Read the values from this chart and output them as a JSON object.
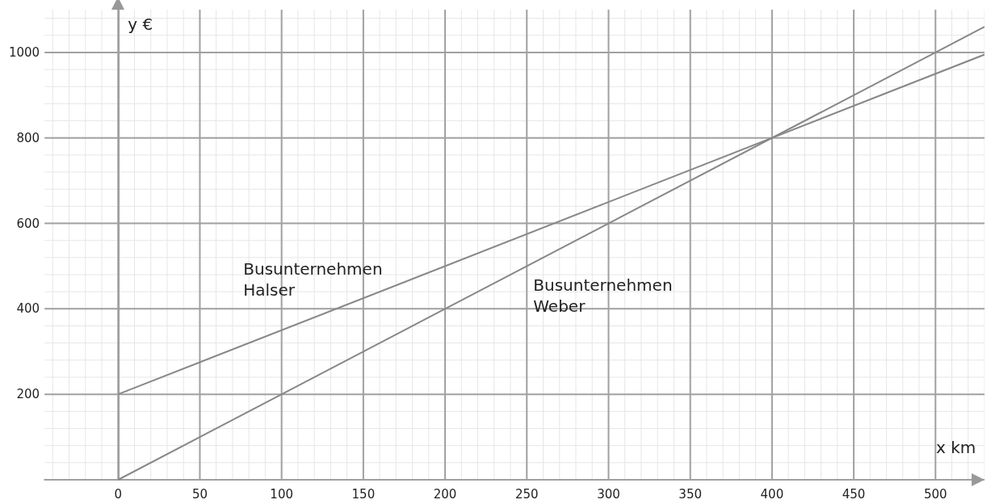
{
  "chart_data": {
    "type": "line",
    "xlabel": "x km",
    "ylabel": "y €",
    "xlim": [
      -45,
      530
    ],
    "ylim": [
      0,
      1100
    ],
    "xticks": [
      0,
      50,
      100,
      150,
      200,
      250,
      300,
      350,
      400,
      450,
      500
    ],
    "yticks": [
      200,
      400,
      600,
      800,
      1000
    ],
    "grid": true,
    "x": [
      0,
      530
    ],
    "marker": "none",
    "line_style": "solid",
    "series": [
      {
        "name": "Busunternehmen Halser",
        "color": "#888888",
        "values": [
          200,
          995
        ]
      },
      {
        "name": "Busunternehmen Weber",
        "color": "#888888",
        "values": [
          0,
          1060
        ]
      }
    ]
  }
}
